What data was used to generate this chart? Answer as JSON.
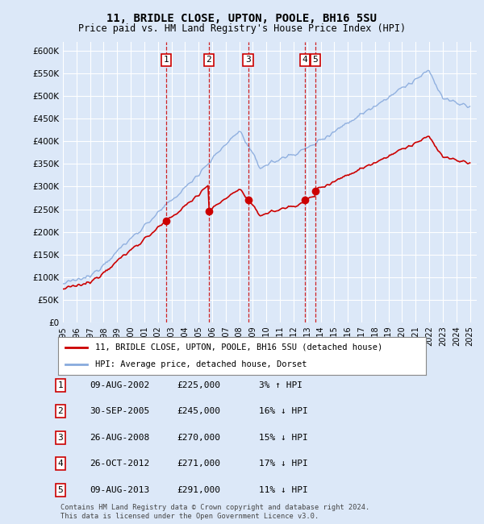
{
  "title": "11, BRIDLE CLOSE, UPTON, POOLE, BH16 5SU",
  "subtitle": "Price paid vs. HM Land Registry's House Price Index (HPI)",
  "ylim": [
    0,
    620000
  ],
  "yticks": [
    0,
    50000,
    100000,
    150000,
    200000,
    250000,
    300000,
    350000,
    400000,
    450000,
    500000,
    550000,
    600000
  ],
  "background_color": "#dce8f8",
  "plot_bg_color": "#dce8f8",
  "bottom_bg_color": "#ffffff",
  "grid_color": "#ffffff",
  "sale_color": "#cc0000",
  "hpi_color": "#88aadd",
  "sale_label": "11, BRIDLE CLOSE, UPTON, POOLE, BH16 5SU (detached house)",
  "hpi_label": "HPI: Average price, detached house, Dorset",
  "transactions": [
    {
      "num": 1,
      "date": "09-AUG-2002",
      "price": 225000,
      "pct": "3%",
      "dir": "↑"
    },
    {
      "num": 2,
      "date": "30-SEP-2005",
      "price": 245000,
      "pct": "16%",
      "dir": "↓"
    },
    {
      "num": 3,
      "date": "26-AUG-2008",
      "price": 270000,
      "pct": "15%",
      "dir": "↓"
    },
    {
      "num": 4,
      "date": "26-OCT-2012",
      "price": 271000,
      "pct": "17%",
      "dir": "↓"
    },
    {
      "num": 5,
      "date": "09-AUG-2013",
      "price": 291000,
      "pct": "11%",
      "dir": "↓"
    }
  ],
  "transaction_x": [
    2002.6,
    2005.75,
    2008.65,
    2012.82,
    2013.6
  ],
  "transaction_y": [
    225000,
    245000,
    270000,
    271000,
    291000
  ],
  "footer": "Contains HM Land Registry data © Crown copyright and database right 2024.\nThis data is licensed under the Open Government Licence v3.0.",
  "figsize": [
    6.0,
    6.5
  ],
  "dpi": 100
}
